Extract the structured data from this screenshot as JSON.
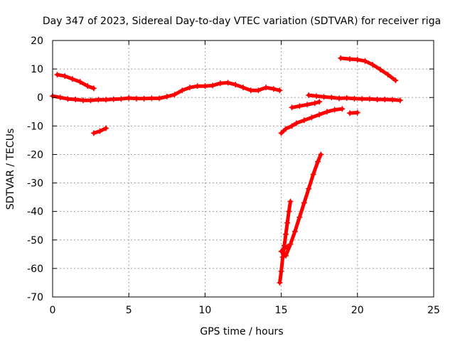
{
  "chart_data": {
    "type": "scatter",
    "title": "Day 347 of 2023, Sidereal Day-to-day VTEC variation (SDTVAR) for receiver riga",
    "xlabel": "GPS time / hours",
    "ylabel": "SDTVAR / TECUs",
    "xlim": [
      0,
      25
    ],
    "ylim": [
      -70,
      20
    ],
    "xticks": [
      0,
      5,
      10,
      15,
      20,
      25
    ],
    "yticks": [
      -70,
      -60,
      -50,
      -40,
      -30,
      -20,
      -10,
      0,
      10,
      20
    ],
    "grid": true,
    "marker": "plus",
    "color": "#ff0000",
    "series": [
      {
        "points": [
          [
            0.0,
            0.5
          ],
          [
            0.5,
            0.0
          ],
          [
            1.0,
            -0.5
          ],
          [
            1.5,
            -0.7
          ],
          [
            2.0,
            -1.0
          ],
          [
            2.5,
            -1.0
          ],
          [
            3.0,
            -0.8
          ],
          [
            3.5,
            -0.8
          ],
          [
            4.0,
            -0.6
          ],
          [
            4.5,
            -0.5
          ],
          [
            5.0,
            -0.2
          ],
          [
            5.5,
            -0.4
          ],
          [
            6.0,
            -0.4
          ],
          [
            6.5,
            -0.3
          ],
          [
            7.0,
            -0.3
          ],
          [
            7.5,
            0.3
          ],
          [
            8.0,
            1.0
          ],
          [
            8.5,
            2.5
          ],
          [
            9.0,
            3.5
          ],
          [
            9.5,
            4.0
          ],
          [
            10.0,
            4.0
          ],
          [
            10.5,
            4.2
          ],
          [
            11.0,
            5.0
          ],
          [
            11.5,
            5.2
          ],
          [
            12.0,
            4.5
          ],
          [
            12.5,
            3.5
          ],
          [
            13.0,
            2.5
          ],
          [
            13.5,
            2.5
          ],
          [
            14.0,
            3.5
          ],
          [
            14.5,
            3.0
          ],
          [
            14.9,
            2.5
          ]
        ]
      },
      {
        "points": [
          [
            0.3,
            8.0
          ],
          [
            0.8,
            7.5
          ],
          [
            1.3,
            6.5
          ],
          [
            1.8,
            5.5
          ],
          [
            2.3,
            4.0
          ],
          [
            2.7,
            3.2
          ]
        ]
      },
      {
        "points": [
          [
            2.7,
            -12.5
          ],
          [
            3.1,
            -11.8
          ],
          [
            3.5,
            -10.8
          ]
        ]
      },
      {
        "points": [
          [
            15.0,
            -12.5
          ],
          [
            15.3,
            -11.0
          ],
          [
            15.7,
            -10.0
          ],
          [
            16.0,
            -9.0
          ],
          [
            16.5,
            -8.0
          ],
          [
            17.0,
            -7.0
          ],
          [
            17.5,
            -6.0
          ],
          [
            18.0,
            -5.0
          ],
          [
            18.5,
            -4.3
          ],
          [
            19.0,
            -4.0
          ]
        ]
      },
      {
        "points": [
          [
            19.5,
            -5.5
          ],
          [
            20.0,
            -5.3
          ]
        ]
      },
      {
        "points": [
          [
            15.7,
            -3.5
          ],
          [
            16.2,
            -3.0
          ],
          [
            16.7,
            -2.5
          ],
          [
            17.2,
            -2.0
          ],
          [
            17.5,
            -1.5
          ]
        ]
      },
      {
        "points": [
          [
            16.8,
            0.8
          ],
          [
            17.3,
            0.5
          ],
          [
            17.8,
            0.2
          ],
          [
            18.3,
            0.0
          ],
          [
            18.8,
            -0.3
          ],
          [
            19.3,
            -0.2
          ],
          [
            19.8,
            -0.4
          ],
          [
            20.3,
            -0.5
          ],
          [
            20.8,
            -0.5
          ],
          [
            21.3,
            -0.7
          ],
          [
            21.8,
            -0.7
          ],
          [
            22.3,
            -0.8
          ],
          [
            22.8,
            -1.0
          ]
        ]
      },
      {
        "points": [
          [
            18.9,
            13.8
          ],
          [
            19.5,
            13.5
          ],
          [
            20.0,
            13.3
          ],
          [
            20.5,
            12.8
          ],
          [
            21.0,
            11.5
          ],
          [
            21.5,
            9.8
          ],
          [
            22.0,
            8.0
          ],
          [
            22.5,
            6.0
          ]
        ]
      },
      {
        "points": [
          [
            14.9,
            -65.0
          ],
          [
            15.0,
            -61.0
          ],
          [
            15.1,
            -56.0
          ],
          [
            15.2,
            -52.0
          ],
          [
            15.3,
            -48.0
          ],
          [
            15.4,
            -44.0
          ],
          [
            15.5,
            -40.0
          ],
          [
            15.6,
            -36.5
          ]
        ]
      },
      {
        "points": [
          [
            15.0,
            -54.0
          ],
          [
            15.2,
            -53.0
          ],
          [
            15.4,
            -52.5
          ]
        ]
      },
      {
        "points": [
          [
            15.3,
            -55.5
          ],
          [
            15.6,
            -51.5
          ],
          [
            15.9,
            -47.0
          ],
          [
            16.2,
            -42.0
          ],
          [
            16.5,
            -37.0
          ],
          [
            16.8,
            -32.0
          ],
          [
            17.1,
            -27.0
          ],
          [
            17.4,
            -22.5
          ],
          [
            17.6,
            -20.0
          ]
        ]
      }
    ]
  }
}
